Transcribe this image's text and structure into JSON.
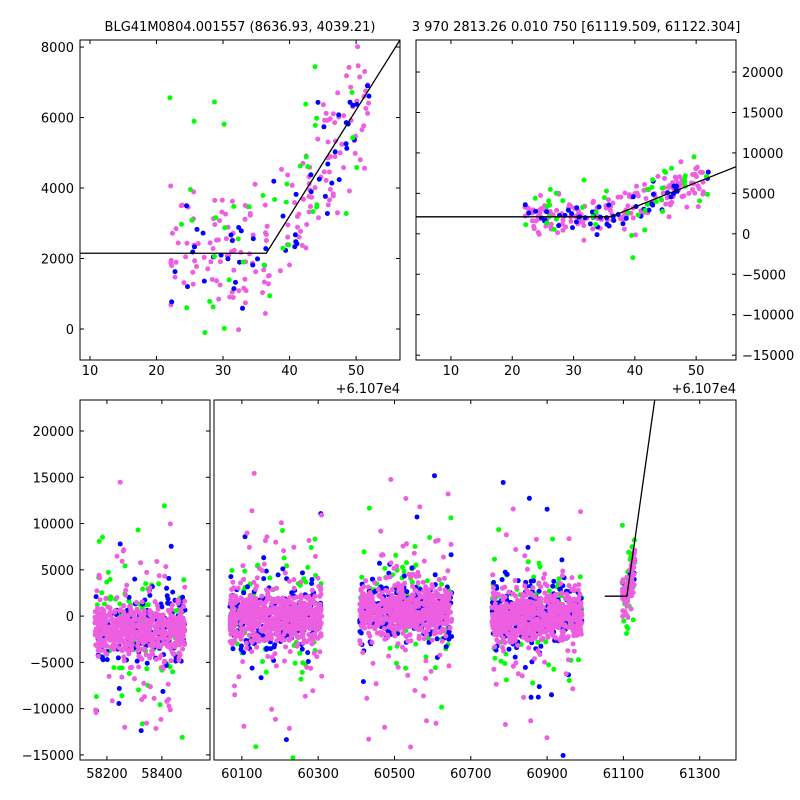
{
  "chart_data": [
    {
      "type": "scatter",
      "panel": "top-left",
      "title": "BLG41M0804.001557 (8636.93, 4039.21)",
      "xlim": [
        8.5,
        56.6
      ],
      "ylim": [
        -880,
        8200
      ],
      "xticks": [
        10,
        20,
        30,
        40,
        50
      ],
      "yticks": [
        0,
        2000,
        4000,
        6000,
        8000
      ],
      "x_offset_label": "+6.107e4",
      "model_line": {
        "x": [
          8.5,
          36.5,
          56.6
        ],
        "y": [
          2150,
          2150,
          8200
        ]
      },
      "generator": {
        "x_range": [
          22,
          52
        ],
        "noise": 900,
        "counts": {
          "pink": 170,
          "blue": 55,
          "green": 45
        }
      }
    },
    {
      "type": "scatter",
      "panel": "top-right",
      "title": "3 970 2813.26 0.010 750 [61119.509, 61122.304]",
      "xlim": [
        4.3,
        56.5
      ],
      "ylim": [
        -15600,
        23960
      ],
      "xticks": [
        10,
        20,
        30,
        40,
        50
      ],
      "yticks": [
        -15000,
        -10000,
        -5000,
        0,
        5000,
        10000,
        15000,
        20000
      ],
      "x_offset_label": "+6.107e4",
      "model_line": {
        "x": [
          4.3,
          36,
          56.5
        ],
        "y": [
          2100,
          2100,
          8300
        ]
      },
      "generator": {
        "x_range": [
          22,
          52
        ],
        "noise": 1200,
        "counts": {
          "pink": 170,
          "blue": 55,
          "green": 45
        }
      }
    },
    {
      "type": "scatter",
      "panel": "bottom",
      "ylim": [
        -15550,
        23350
      ],
      "yticks": [
        -15000,
        -10000,
        -5000,
        0,
        5000,
        10000,
        15000,
        20000
      ],
      "segments": [
        {
          "xlim": [
            58102,
            58575
          ],
          "xticks": [
            58200,
            58400
          ]
        },
        {
          "xlim": [
            60027,
            61395
          ],
          "xticks": [
            60100,
            60300,
            60500,
            60700,
            60900,
            61100,
            61300
          ]
        }
      ],
      "model_line": {
        "x": [
          61051,
          61109,
          61182
        ],
        "y": [
          2150,
          2150,
          23350
        ]
      },
      "seasons": [
        {
          "x_range": [
            58156,
            58484
          ],
          "center": -1500,
          "spread": 1300,
          "outlier_spread": 7000
        },
        {
          "x_range": [
            60069,
            60310
          ],
          "center": -200,
          "spread": 1300,
          "outlier_spread": 6500
        },
        {
          "x_range": [
            60409,
            60650
          ],
          "center": 600,
          "spread": 1300,
          "outlier_spread": 6000
        },
        {
          "x_range": [
            60755,
            60991
          ],
          "center": 0,
          "spread": 1300,
          "outlier_spread": 6500
        }
      ],
      "event": {
        "x_range": [
          61096,
          61130
        ]
      }
    }
  ],
  "colors": {
    "pink": "#ee5ee0",
    "blue": "#0000ff",
    "green": "#00ff00",
    "line": "#000000"
  }
}
